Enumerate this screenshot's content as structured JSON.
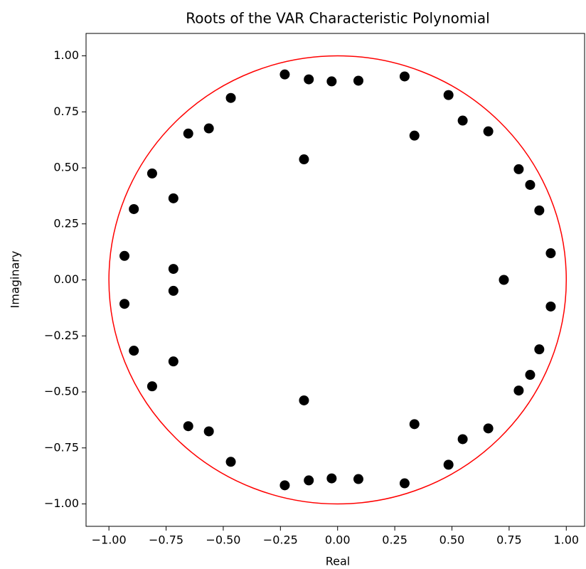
{
  "chart_data": {
    "type": "scatter",
    "title": "Roots of the VAR Characteristic Polynomial",
    "xlabel": "Real",
    "ylabel": "Imaginary",
    "xlim": [
      -1.1,
      1.08
    ],
    "ylim": [
      -1.1,
      1.1
    ],
    "xticks": [
      {
        "value": -1,
        "label": "−1.00"
      },
      {
        "value": -0.75,
        "label": "−0.75"
      },
      {
        "value": -0.5,
        "label": "−0.50"
      },
      {
        "value": -0.25,
        "label": "−0.25"
      },
      {
        "value": 0,
        "label": "0.00"
      },
      {
        "value": 0.25,
        "label": "0.25"
      },
      {
        "value": 0.5,
        "label": "0.50"
      },
      {
        "value": 0.75,
        "label": "0.75"
      },
      {
        "value": 1,
        "label": "1.00"
      }
    ],
    "yticks": [
      {
        "value": -1,
        "label": "−1.00"
      },
      {
        "value": -0.75,
        "label": "−0.75"
      },
      {
        "value": -0.5,
        "label": "−0.50"
      },
      {
        "value": -0.25,
        "label": "−0.25"
      },
      {
        "value": 0,
        "label": "0.00"
      },
      {
        "value": 0.25,
        "label": "0.25"
      },
      {
        "value": 0.5,
        "label": "0.50"
      },
      {
        "value": 0.75,
        "label": "0.75"
      },
      {
        "value": 1,
        "label": "1.00"
      }
    ],
    "color": "#000000",
    "unit_circle": {
      "radius": 1,
      "color": "#ff0000"
    },
    "x": [
      -0.231,
      -0.126,
      -0.026,
      0.091,
      0.293,
      0.485,
      0.547,
      0.659,
      0.336,
      -0.467,
      -0.653,
      -0.563,
      -0.147,
      -0.811,
      -0.718,
      -0.891,
      0.792,
      0.842,
      0.882,
      0.932,
      -0.932,
      -0.718,
      0.727,
      -0.231,
      -0.126,
      -0.026,
      0.091,
      0.293,
      0.485,
      0.547,
      0.659,
      0.336,
      -0.467,
      -0.653,
      -0.563,
      -0.147,
      -0.811,
      -0.718,
      -0.891,
      0.792,
      0.842,
      0.882,
      0.932,
      -0.932,
      -0.718
    ],
    "y": [
      0.917,
      0.895,
      0.886,
      0.889,
      0.908,
      0.825,
      0.711,
      0.663,
      0.644,
      0.812,
      0.653,
      0.676,
      0.538,
      0.475,
      0.364,
      0.316,
      0.494,
      0.424,
      0.31,
      0.119,
      0.107,
      0.049,
      0,
      -0.917,
      -0.895,
      -0.886,
      -0.889,
      -0.908,
      -0.825,
      -0.711,
      -0.663,
      -0.644,
      -0.812,
      -0.653,
      -0.676,
      -0.538,
      -0.475,
      -0.364,
      -0.316,
      -0.494,
      -0.424,
      -0.31,
      -0.119,
      -0.107,
      -0.049
    ]
  }
}
